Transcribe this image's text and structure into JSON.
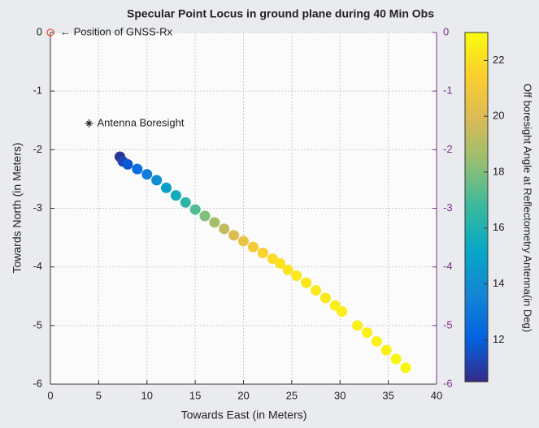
{
  "chart_data": {
    "type": "scatter",
    "title": "Specular Point Locus in ground plane during 40 Min Obs",
    "x_label": "Towards East (in Meters)",
    "y_label": "Towards North (in Meters)",
    "colorbar_label": "Off boresight Angle at Reflectometry Antenna(in Deg)",
    "colormap": "parula",
    "clim": [
      10.5,
      23
    ],
    "cticks": [
      12,
      14,
      16,
      18,
      20,
      22
    ],
    "xlim": [
      0,
      40
    ],
    "xticks": [
      0,
      5,
      10,
      15,
      20,
      25,
      30,
      35,
      40
    ],
    "ylim": [
      -6,
      0
    ],
    "yticks": [
      0,
      -1,
      -2,
      -3,
      -4,
      -5,
      -6
    ],
    "y2lim": [
      -6,
      0
    ],
    "y2ticks": [
      0,
      -1,
      -2,
      -3,
      -4,
      -5,
      -6
    ],
    "y2color": "#7e2f8e",
    "grid": true,
    "series": [
      {
        "x": [
          7.2,
          7.5,
          8,
          9,
          10,
          11,
          12,
          13,
          14,
          15,
          16,
          17,
          18,
          19,
          20,
          21,
          22,
          23,
          23.8,
          24.6,
          25.5,
          26.5,
          27.5,
          28.5,
          29.5,
          30.2,
          31.8,
          32.8,
          33.8,
          34.8,
          35.8,
          36.8
        ],
        "values": [
          -2.12,
          -2.2,
          -2.25,
          -2.33,
          -2.42,
          -2.52,
          -2.65,
          -2.78,
          -2.9,
          -3.02,
          -3.13,
          -3.24,
          -3.35,
          -3.46,
          -3.56,
          -3.66,
          -3.76,
          -3.86,
          -3.94,
          -4.05,
          -4.15,
          -4.27,
          -4.4,
          -4.53,
          -4.66,
          -4.76,
          -5.0,
          -5.12,
          -5.27,
          -5.42,
          -5.57,
          -5.72
        ],
        "c": [
          10.8,
          11.2,
          11.8,
          12.5,
          13.3,
          14,
          14.8,
          15.6,
          16.4,
          17.2,
          18,
          18.8,
          19.4,
          20,
          20.6,
          21.1,
          21.5,
          21.9,
          22.1,
          22.2,
          22.3,
          22.3,
          22.4,
          22.4,
          22.5,
          22.5,
          22.6,
          22.6,
          22.7,
          22.7,
          22.8,
          22.8
        ]
      }
    ],
    "annotations": [
      {
        "text": "← Position of GNSS-Rx",
        "x": 0,
        "y": 0,
        "marker": "circle",
        "color": "#e8503a"
      },
      {
        "text": "Antenna Boresight",
        "x": 4,
        "y": -1.55,
        "marker": "asterisk",
        "color": "#222222"
      }
    ]
  }
}
